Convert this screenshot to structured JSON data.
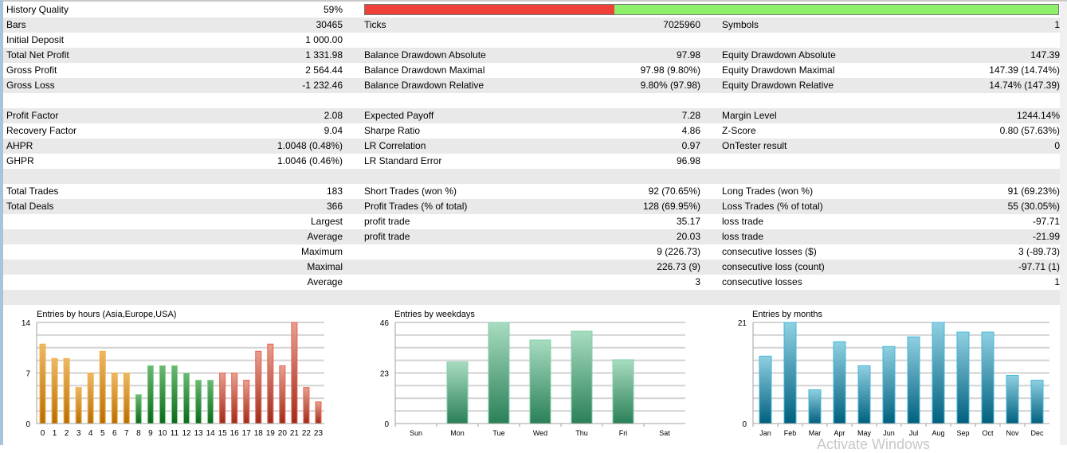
{
  "history_quality": {
    "label": "History Quality",
    "value": "59%",
    "bar_red_fraction": 0.36,
    "bar_colors": {
      "red": "#f0403a",
      "green": "#8ef06a"
    }
  },
  "rows": [
    {
      "c": [
        "Bars",
        "30465",
        "Ticks",
        "7025960",
        "Symbols",
        "1"
      ]
    },
    {
      "c": [
        "Initial Deposit",
        "1 000.00",
        "",
        "",
        "",
        ""
      ]
    },
    {
      "c": [
        "Total Net Profit",
        "1 331.98",
        "Balance Drawdown Absolute",
        "97.98",
        "Equity Drawdown Absolute",
        "147.39"
      ]
    },
    {
      "c": [
        "Gross Profit",
        "2 564.44",
        "Balance Drawdown Maximal",
        "97.98 (9.80%)",
        "Equity Drawdown Maximal",
        "147.39 (14.74%)"
      ]
    },
    {
      "c": [
        "Gross Loss",
        "-1 232.46",
        "Balance Drawdown Relative",
        "9.80% (97.98)",
        "Equity Drawdown Relative",
        "14.74% (147.39)"
      ]
    },
    {
      "c": [
        "",
        "",
        "",
        "",
        "",
        ""
      ]
    },
    {
      "c": [
        "Profit Factor",
        "2.08",
        "Expected Payoff",
        "7.28",
        "Margin Level",
        "1244.14%"
      ]
    },
    {
      "c": [
        "Recovery Factor",
        "9.04",
        "Sharpe Ratio",
        "4.86",
        "Z-Score",
        "0.80 (57.63%)"
      ]
    },
    {
      "c": [
        "AHPR",
        "1.0048 (0.48%)",
        "LR Correlation",
        "0.97",
        "OnTester result",
        "0"
      ]
    },
    {
      "c": [
        "GHPR",
        "1.0046 (0.46%)",
        "LR Standard Error",
        "96.98",
        "",
        ""
      ]
    },
    {
      "c": [
        "",
        "",
        "",
        "",
        "",
        ""
      ]
    },
    {
      "c": [
        "Total Trades",
        "183",
        "Short Trades (won %)",
        "92 (70.65%)",
        "Long Trades (won %)",
        "91 (69.23%)"
      ]
    },
    {
      "c": [
        "Total Deals",
        "366",
        "Profit Trades (% of total)",
        "128 (69.95%)",
        "Loss Trades (% of total)",
        "55 (30.05%)"
      ]
    },
    {
      "c": [
        "",
        "Largest",
        "profit trade",
        "35.17",
        "loss trade",
        "-97.71"
      ]
    },
    {
      "c": [
        "",
        "Average",
        "profit trade",
        "20.03",
        "loss trade",
        "-21.99"
      ]
    },
    {
      "c": [
        "",
        "Maximum",
        "",
        "9 (226.73)",
        "consecutive losses ($)",
        "3 (-89.73)"
      ]
    },
    {
      "c": [
        "",
        "Maximal",
        "",
        "226.73 (9)",
        "consecutive loss (count)",
        "-97.71 (1)"
      ]
    },
    {
      "c": [
        "",
        "Average",
        "",
        "3",
        "consecutive losses",
        "1"
      ]
    },
    {
      "c": [
        "",
        "",
        "",
        "",
        "",
        ""
      ]
    }
  ],
  "watermark": "Activate Windows",
  "chart_data": [
    {
      "type": "bar",
      "title": "Entries by hours (Asia,Europe,USA)",
      "categories": [
        "0",
        "1",
        "2",
        "3",
        "4",
        "5",
        "6",
        "7",
        "8",
        "9",
        "10",
        "11",
        "12",
        "13",
        "14",
        "15",
        "16",
        "17",
        "18",
        "19",
        "20",
        "21",
        "22",
        "23"
      ],
      "values": [
        11,
        9,
        9,
        5,
        7,
        10,
        7,
        7,
        4,
        8,
        8,
        8,
        7,
        6,
        6,
        7,
        7,
        6,
        10,
        11,
        8,
        14,
        5,
        3
      ],
      "ylim": [
        0,
        14
      ],
      "yticks": [
        "0",
        "7",
        "14"
      ],
      "groups": [
        {
          "name": "Asia",
          "from": 0,
          "to": 7,
          "colors": [
            "#ecb868",
            "#b86e04"
          ],
          "border": "#f5b040"
        },
        {
          "name": "Europe",
          "from": 8,
          "to": 14,
          "colors": [
            "#6cb872",
            "#0b6a1c"
          ],
          "border": "#7fd08a"
        },
        {
          "name": "USA",
          "from": 15,
          "to": 23,
          "colors": [
            "#e8a090",
            "#a02a18"
          ],
          "border": "#e86050"
        }
      ]
    },
    {
      "type": "bar",
      "title": "Entries by weekdays",
      "categories": [
        "Sun",
        "Mon",
        "Tue",
        "Wed",
        "Thu",
        "Fri",
        "Sat"
      ],
      "values": [
        0,
        28,
        46,
        38,
        42,
        29,
        0
      ],
      "ylim": [
        0,
        46
      ],
      "yticks": [
        "0",
        "23",
        "46"
      ],
      "groups": [
        {
          "name": "all",
          "from": 0,
          "to": 6,
          "colors": [
            "#a8dcc0",
            "#2a8058"
          ],
          "border": "#80d0a8"
        }
      ]
    },
    {
      "type": "bar",
      "title": "Entries by months",
      "categories": [
        "Jan",
        "Feb",
        "Mar",
        "Apr",
        "May",
        "Jun",
        "Jul",
        "Aug",
        "Sep",
        "Oct",
        "Nov",
        "Dec"
      ],
      "values": [
        14,
        21,
        7,
        17,
        12,
        16,
        18,
        21,
        19,
        19,
        10,
        9
      ],
      "ylim": [
        0,
        21
      ],
      "yticks": [
        "0",
        "21"
      ],
      "groups": [
        {
          "name": "all",
          "from": 0,
          "to": 11,
          "colors": [
            "#90d0e2",
            "#00607e"
          ],
          "border": "#40b8d8"
        }
      ]
    }
  ]
}
